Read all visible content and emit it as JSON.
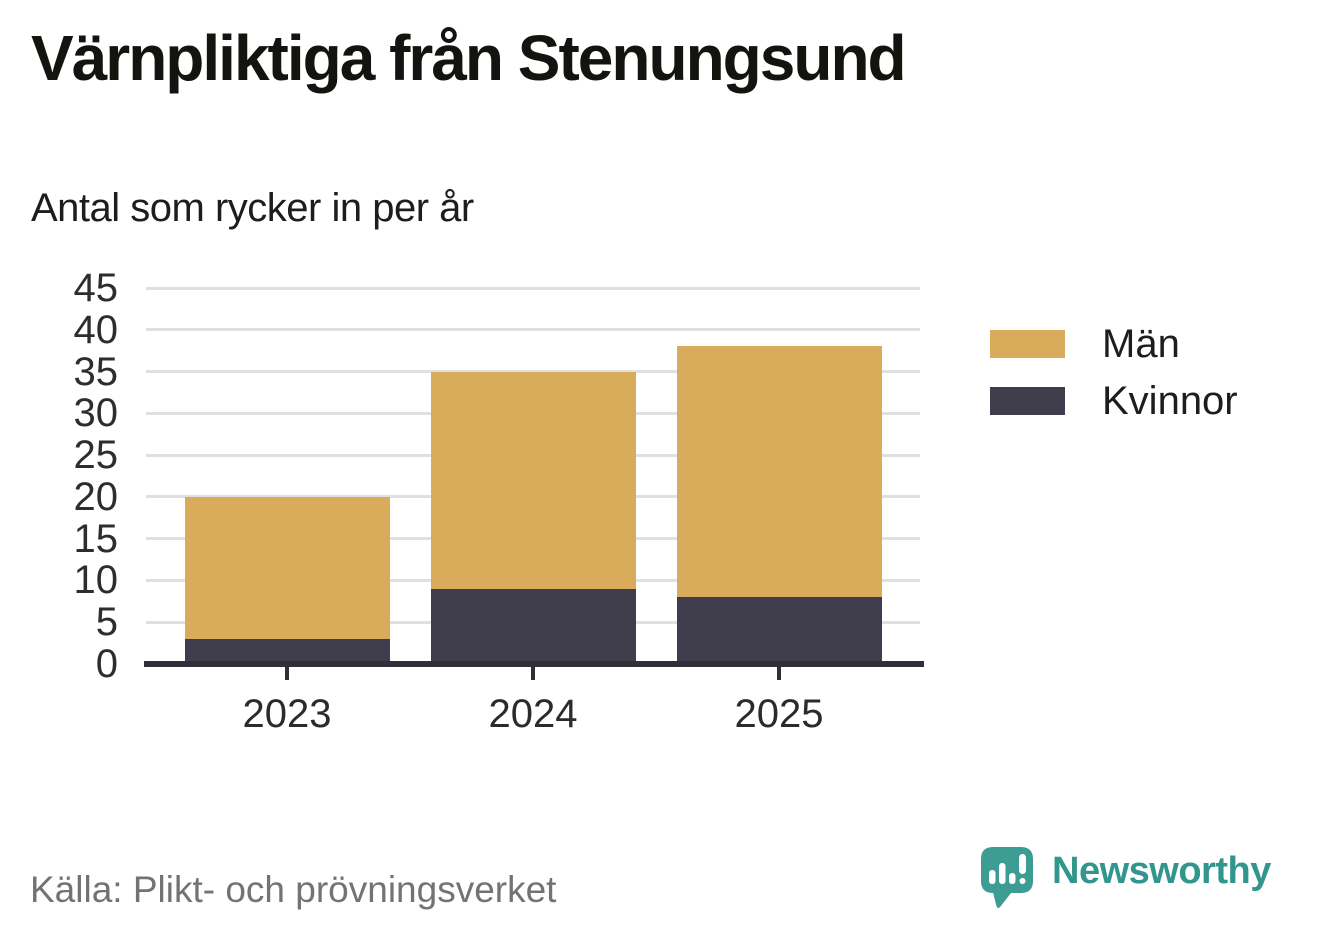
{
  "title": "Värnpliktiga från Stenungsund",
  "subtitle": "Antal som rycker in per år",
  "footer": {
    "source": "Källa: Plikt- och prövningsverket",
    "brand_name": "Newsworthy"
  },
  "palette": {
    "men_gold": "#D9AC5C",
    "women_dark": "#3F3C4C",
    "axis": "#302E39",
    "grid": "#E0E0E0",
    "brand_teal": "#39978E",
    "source_gray": "#737373"
  },
  "chart_data": {
    "type": "bar",
    "stacked": true,
    "title": "Värnpliktiga från Stenungsund",
    "subtitle": "Antal som rycker in per år",
    "categories": [
      "2023",
      "2024",
      "2025"
    ],
    "series": [
      {
        "name": "Män",
        "color": "#D9AC5C",
        "values": [
          17,
          26,
          30
        ]
      },
      {
        "name": "Kvinnor",
        "color": "#3F3C4C",
        "values": [
          3,
          9,
          8
        ]
      }
    ],
    "totals": [
      20,
      35,
      38
    ],
    "stack_bottom_series": "Kvinnor",
    "xlabel": "",
    "ylabel": "",
    "ylim": [
      0,
      45
    ],
    "yticks": [
      0,
      5,
      10,
      15,
      20,
      25,
      30,
      35,
      40,
      45
    ],
    "grid": true,
    "legend_position": "right",
    "source": "Källa: Plikt- och prövningsverket"
  }
}
